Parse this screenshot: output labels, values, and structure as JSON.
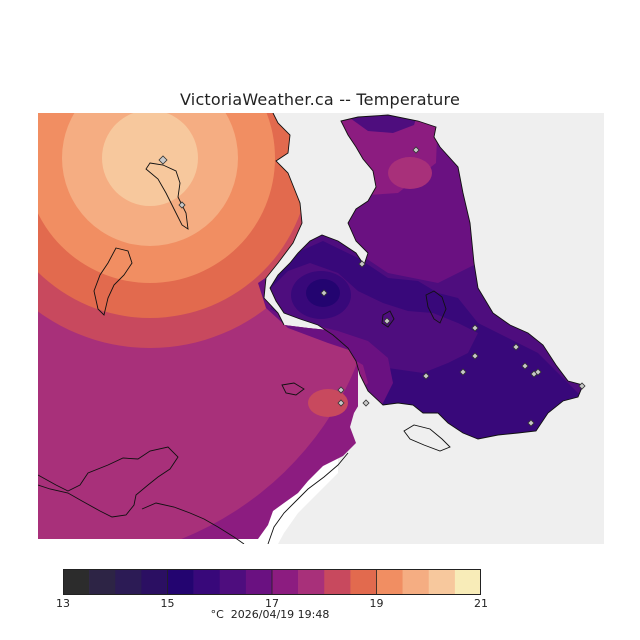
{
  "title": "VictoriaWeather.ca -- Temperature",
  "colorbar": {
    "min": 13,
    "max": 21,
    "tick_labels": [
      "13",
      "15",
      "17",
      "19",
      "21"
    ],
    "colors": [
      "#2c2c2c",
      "#2d2445",
      "#2c1b55",
      "#2b0f62",
      "#230470",
      "#38087a",
      "#4e0d7e",
      "#6a1181",
      "#8c1c80",
      "#a8307a",
      "#c8495e",
      "#e26a4e",
      "#f18e62",
      "#f5ad82",
      "#f7c89d",
      "#f8ecb8"
    ]
  },
  "caption": {
    "unit": "°C",
    "timestamp": "2026/04/19 19:48"
  },
  "map": {
    "stations_count": 20
  }
}
